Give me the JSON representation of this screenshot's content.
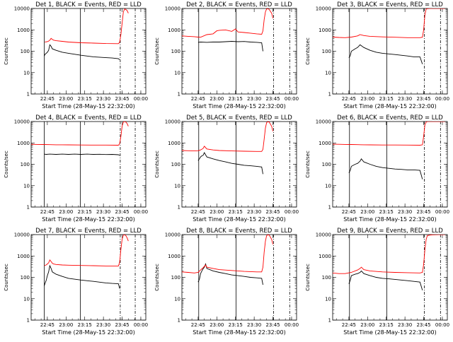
{
  "figure": {
    "xlabel": "Start Time (28-May-15 22:32:00)",
    "ylabel": "Counts/sec",
    "xticks": [
      "22:45",
      "23:00",
      "23:15",
      "23:30",
      "23:45",
      "00:00"
    ],
    "yticks": [
      "1",
      "10",
      "100",
      "1000",
      "10000"
    ],
    "series_colors": {
      "events": "#000000",
      "lld": "#ff0000"
    }
  },
  "chart_data": [
    {
      "type": "line",
      "title": "Det 1, BLACK = Events, RED = LLD",
      "log_y": true,
      "xlabel": "Start Time (28-May-15 22:32:00)",
      "ylabel": "Counts/sec",
      "x_minutes_ticks": [
        13,
        28,
        43,
        58,
        73,
        88
      ],
      "ylim": [
        1,
        10000
      ],
      "series": [
        {
          "name": "Events",
          "x": [
            10.5,
            11,
            13,
            14,
            15,
            16,
            17,
            20,
            25,
            30,
            40,
            50,
            60,
            65,
            70,
            71
          ],
          "y": [
            60,
            70,
            90,
            110,
            200,
            170,
            130,
            110,
            90,
            80,
            65,
            55,
            50,
            48,
            45,
            40
          ]
        },
        {
          "name": "LLD",
          "x": [
            11,
            13,
            14,
            15,
            16,
            17,
            18,
            20,
            25,
            30,
            40,
            50,
            60,
            70,
            71,
            72,
            73,
            74,
            75,
            76,
            77,
            78
          ],
          "y": [
            270,
            280,
            300,
            330,
            400,
            360,
            330,
            310,
            290,
            270,
            250,
            240,
            230,
            225,
            260,
            600,
            2000,
            7000,
            9500,
            9000,
            8000,
            6000
          ]
        }
      ],
      "vlines_solid": [
        10.5,
        39.5
      ],
      "vlines_dashdot": [
        71.5,
        83.5
      ]
    },
    {
      "type": "line",
      "title": "Det 2, BLACK = Events, RED = LLD",
      "log_y": true,
      "xlabel": "Start Time (28-May-15 22:32:00)",
      "ylabel": "Counts/sec",
      "x_minutes_ticks": [
        13,
        28,
        43,
        58,
        73,
        88
      ],
      "ylim": [
        1,
        10000
      ],
      "series": [
        {
          "name": "Events",
          "x": [
            13,
            15,
            20,
            25,
            30,
            35,
            40,
            45,
            50,
            55,
            60,
            64,
            65
          ],
          "y": [
            260,
            270,
            260,
            270,
            270,
            280,
            290,
            280,
            285,
            270,
            260,
            250,
            100
          ]
        },
        {
          "name": "LLD",
          "x": [
            0,
            5,
            10,
            13,
            15,
            20,
            25,
            28,
            30,
            35,
            40,
            43,
            45,
            50,
            55,
            60,
            64,
            65,
            66,
            67,
            68,
            69,
            70,
            72,
            73
          ],
          "y": [
            520,
            500,
            480,
            460,
            450,
            600,
            650,
            900,
            950,
            1000,
            850,
            1100,
            800,
            750,
            700,
            650,
            620,
            900,
            3000,
            7000,
            9500,
            9800,
            9000,
            6000,
            3500
          ]
        }
      ],
      "vlines_solid": [
        13.5,
        43.5
      ],
      "vlines_dashdot": [
        73.5,
        86.5
      ]
    },
    {
      "type": "line",
      "title": "Det 3, BLACK = Events, RED = LLD",
      "log_y": true,
      "xlabel": "Start Time (28-May-15 22:32:00)",
      "ylabel": "Counts/sec",
      "x_minutes_ticks": [
        13,
        28,
        43,
        58,
        73,
        88
      ],
      "ylim": [
        1,
        10000
      ],
      "series": [
        {
          "name": "Events",
          "x": [
            13,
            14,
            15,
            18,
            20,
            22,
            25,
            30,
            35,
            40,
            45,
            50,
            55,
            60,
            65,
            70,
            72
          ],
          "y": [
            50,
            60,
            100,
            130,
            150,
            200,
            150,
            110,
            90,
            80,
            75,
            70,
            65,
            60,
            55,
            55,
            25
          ]
        },
        {
          "name": "LLD",
          "x": [
            0,
            5,
            10,
            15,
            20,
            22,
            25,
            30,
            40,
            50,
            60,
            70,
            72,
            73,
            74,
            75,
            76,
            78,
            80,
            85,
            88,
            90
          ],
          "y": [
            460,
            440,
            430,
            460,
            520,
            600,
            540,
            500,
            470,
            450,
            430,
            430,
            450,
            1000,
            5000,
            9500,
            9800,
            9900,
            9900,
            9900,
            9900,
            9900
          ]
        }
      ],
      "vlines_solid": [
        13.5,
        43.5
      ],
      "vlines_dashdot": [
        73.5,
        86.5
      ]
    },
    {
      "type": "line",
      "title": "Det 4, BLACK = Events, RED = LLD",
      "log_y": true,
      "xlabel": "Start Time (28-May-15 22:32:00)",
      "ylabel": "Counts/sec",
      "x_minutes_ticks": [
        13,
        28,
        43,
        58,
        73,
        88
      ],
      "ylim": [
        1,
        10000
      ],
      "series": [
        {
          "name": "Events",
          "x": [
            10.5,
            12,
            15,
            20,
            25,
            30,
            35,
            40,
            45,
            50,
            55,
            60,
            65,
            70,
            71
          ],
          "y": [
            300,
            290,
            300,
            290,
            300,
            290,
            300,
            290,
            300,
            290,
            295,
            285,
            290,
            280,
            260
          ]
        },
        {
          "name": "LLD",
          "x": [
            0,
            5,
            10,
            15,
            20,
            25,
            30,
            40,
            50,
            60,
            70,
            71,
            72,
            73,
            74,
            75,
            76,
            77,
            78
          ],
          "y": [
            860,
            850,
            840,
            830,
            820,
            820,
            810,
            800,
            790,
            790,
            780,
            900,
            2000,
            6000,
            9500,
            9900,
            9500,
            8000,
            6000
          ]
        }
      ],
      "vlines_solid": [
        10.5,
        39.5
      ],
      "vlines_dashdot": [
        71.5,
        83.5
      ]
    },
    {
      "type": "line",
      "title": "Det 5, BLACK = Events, RED = LLD",
      "log_y": true,
      "xlabel": "Start Time (28-May-15 22:32:00)",
      "ylabel": "Counts/sec",
      "x_minutes_ticks": [
        13,
        28,
        43,
        58,
        73,
        88
      ],
      "ylim": [
        1,
        10000
      ],
      "series": [
        {
          "name": "Events",
          "x": [
            13,
            14,
            15,
            16,
            17,
            18,
            20,
            25,
            30,
            35,
            40,
            45,
            50,
            55,
            60,
            64,
            65
          ],
          "y": [
            150,
            180,
            220,
            250,
            260,
            350,
            220,
            180,
            150,
            130,
            110,
            100,
            90,
            85,
            80,
            75,
            35
          ]
        },
        {
          "name": "LLD",
          "x": [
            0,
            5,
            10,
            13,
            15,
            17,
            18,
            20,
            25,
            30,
            40,
            50,
            60,
            64,
            65,
            66,
            67,
            68,
            69,
            70,
            72,
            73
          ],
          "y": [
            440,
            430,
            420,
            430,
            470,
            550,
            700,
            520,
            470,
            440,
            420,
            410,
            400,
            400,
            500,
            1500,
            5000,
            9000,
            9800,
            9500,
            6000,
            3500
          ]
        }
      ],
      "vlines_solid": [
        13.5,
        43.5
      ],
      "vlines_dashdot": [
        73.5,
        86.5
      ]
    },
    {
      "type": "line",
      "title": "Det 6, BLACK = Events, RED = LLD",
      "log_y": true,
      "xlabel": "Start Time (28-May-15 22:32:00)",
      "ylabel": "Counts/sec",
      "x_minutes_ticks": [
        13,
        28,
        43,
        58,
        73,
        88
      ],
      "ylim": [
        1,
        10000
      ],
      "series": [
        {
          "name": "Events",
          "x": [
            13,
            14,
            15,
            18,
            20,
            22,
            23,
            25,
            30,
            35,
            40,
            45,
            50,
            55,
            60,
            65,
            70,
            72
          ],
          "y": [
            40,
            50,
            80,
            100,
            110,
            140,
            180,
            130,
            100,
            80,
            70,
            65,
            60,
            58,
            55,
            55,
            52,
            20
          ]
        },
        {
          "name": "LLD",
          "x": [
            0,
            5,
            10,
            15,
            20,
            25,
            30,
            40,
            50,
            60,
            70,
            72,
            73,
            74,
            75,
            76,
            78,
            80,
            85,
            88,
            90
          ],
          "y": [
            870,
            860,
            850,
            840,
            830,
            820,
            810,
            800,
            800,
            790,
            780,
            820,
            2000,
            7000,
            9500,
            9900,
            9900,
            9900,
            9900,
            9900,
            9900
          ]
        }
      ],
      "vlines_solid": [
        13.5,
        43.5
      ],
      "vlines_dashdot": [
        73.5,
        86.5
      ]
    },
    {
      "type": "line",
      "title": "Det 7, BLACK = Events, RED = LLD",
      "log_y": true,
      "xlabel": "Start Time (28-May-15 22:32:00)",
      "ylabel": "Counts/sec",
      "x_minutes_ticks": [
        13,
        28,
        43,
        58,
        73,
        88
      ],
      "ylim": [
        1,
        10000
      ],
      "series": [
        {
          "name": "Events",
          "x": [
            10.5,
            11,
            12,
            13,
            14,
            15,
            16,
            17,
            20,
            25,
            30,
            40,
            50,
            60,
            65,
            70,
            71
          ],
          "y": [
            40,
            50,
            70,
            120,
            180,
            350,
            260,
            180,
            140,
            110,
            90,
            75,
            65,
            55,
            52,
            50,
            30
          ]
        },
        {
          "name": "LLD",
          "x": [
            10.5,
            12,
            13,
            14,
            15,
            16,
            17,
            18,
            20,
            25,
            30,
            40,
            50,
            60,
            70,
            71,
            72,
            73,
            74,
            75,
            76,
            77,
            78
          ],
          "y": [
            350,
            380,
            420,
            480,
            650,
            550,
            460,
            420,
            400,
            380,
            370,
            360,
            350,
            340,
            340,
            500,
            2000,
            6000,
            9500,
            9800,
            9000,
            7000,
            5000
          ]
        }
      ],
      "vlines_solid": [
        10.5,
        39.5
      ],
      "vlines_dashdot": [
        71.5,
        83.5
      ]
    },
    {
      "type": "line",
      "title": "Det 8, BLACK = Events, RED = LLD",
      "log_y": true,
      "xlabel": "Start Time (28-May-15 22:32:00)",
      "ylabel": "Counts/sec",
      "x_minutes_ticks": [
        13,
        28,
        43,
        58,
        73,
        88
      ],
      "ylim": [
        1,
        10000
      ],
      "series": [
        {
          "name": "Events",
          "x": [
            13,
            14,
            15,
            16,
            17,
            18,
            19,
            20,
            25,
            30,
            35,
            40,
            45,
            50,
            55,
            60,
            64,
            65
          ],
          "y": [
            60,
            80,
            150,
            200,
            250,
            300,
            420,
            260,
            200,
            170,
            150,
            130,
            120,
            110,
            100,
            95,
            90,
            45
          ]
        },
        {
          "name": "LLD",
          "x": [
            0,
            5,
            10,
            13,
            15,
            17,
            18,
            19,
            20,
            25,
            30,
            40,
            50,
            60,
            64,
            65,
            66,
            67,
            68,
            69,
            70,
            72,
            73
          ],
          "y": [
            180,
            170,
            160,
            170,
            220,
            280,
            330,
            380,
            300,
            260,
            230,
            210,
            190,
            180,
            180,
            300,
            1500,
            5000,
            9000,
            9800,
            9500,
            6000,
            3500
          ]
        }
      ],
      "vlines_solid": [
        13.5,
        43.5
      ],
      "vlines_dashdot": [
        73.5,
        86.5
      ]
    },
    {
      "type": "line",
      "title": "Det 9, BLACK = Events, RED = LLD",
      "log_y": true,
      "xlabel": "Start Time (28-May-15 22:32:00)",
      "ylabel": "Counts/sec",
      "x_minutes_ticks": [
        13,
        28,
        43,
        58,
        73,
        88
      ],
      "ylim": [
        1,
        10000
      ],
      "series": [
        {
          "name": "Events",
          "x": [
            13,
            14,
            15,
            18,
            20,
            22,
            23,
            25,
            30,
            35,
            40,
            45,
            50,
            55,
            60,
            65,
            70,
            72
          ],
          "y": [
            50,
            70,
            120,
            140,
            150,
            170,
            200,
            150,
            120,
            100,
            90,
            85,
            80,
            75,
            70,
            65,
            60,
            25
          ]
        },
        {
          "name": "LLD",
          "x": [
            0,
            5,
            10,
            15,
            20,
            22,
            23,
            25,
            30,
            40,
            50,
            60,
            70,
            72,
            73,
            74,
            75,
            76,
            78,
            80,
            85,
            88,
            90
          ],
          "y": [
            160,
            150,
            150,
            170,
            220,
            260,
            300,
            230,
            200,
            180,
            170,
            165,
            160,
            170,
            400,
            2000,
            6000,
            9000,
            9500,
            9800,
            9900,
            9900,
            9900
          ]
        }
      ],
      "vlines_solid": [
        13.5,
        43.5
      ],
      "vlines_dashdot": [
        73.5,
        86.5
      ]
    }
  ]
}
